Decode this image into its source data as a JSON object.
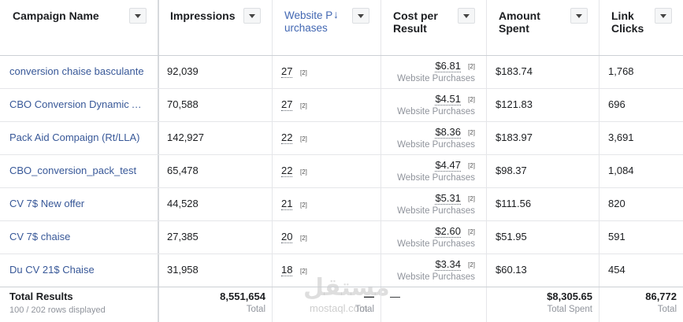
{
  "table": {
    "columns": [
      "Campaign Name",
      "Impressions",
      "Website Purchases",
      "Cost per Result",
      "Amount Spent",
      "Link Clicks"
    ],
    "rows": [
      {
        "name": "conversion chaise basculante",
        "impressions": "92,039",
        "purchases": "27",
        "purchases_note": "[2]",
        "cost": "$6.81",
        "cost_note": "[2]",
        "cost_sub": "Website Purchases",
        "spent": "$183.74",
        "clicks": "1,768"
      },
      {
        "name": "CBO Conversion Dynamic Ads",
        "impressions": "70,588",
        "purchases": "27",
        "purchases_note": "[2]",
        "cost": "$4.51",
        "cost_note": "[2]",
        "cost_sub": "Website Purchases",
        "spent": "$121.83",
        "clicks": "696"
      },
      {
        "name": "Pack Aid Compaign (Rt/LLA)",
        "impressions": "142,927",
        "purchases": "22",
        "purchases_note": "[2]",
        "cost": "$8.36",
        "cost_note": "[2]",
        "cost_sub": "Website Purchases",
        "spent": "$183.97",
        "clicks": "3,691"
      },
      {
        "name": "CBO_conversion_pack_test",
        "impressions": "65,478",
        "purchases": "22",
        "purchases_note": "[2]",
        "cost": "$4.47",
        "cost_note": "[2]",
        "cost_sub": "Website Purchases",
        "spent": "$98.37",
        "clicks": "1,084"
      },
      {
        "name": "CV 7$ New offer",
        "impressions": "44,528",
        "purchases": "21",
        "purchases_note": "[2]",
        "cost": "$5.31",
        "cost_note": "[2]",
        "cost_sub": "Website Purchases",
        "spent": "$111.56",
        "clicks": "820"
      },
      {
        "name": "CV 7$ chaise",
        "impressions": "27,385",
        "purchases": "20",
        "purchases_note": "[2]",
        "cost": "$2.60",
        "cost_note": "[2]",
        "cost_sub": "Website Purchases",
        "spent": "$51.95",
        "clicks": "591"
      },
      {
        "name": "Du CV 21$ Chaise",
        "impressions": "31,958",
        "purchases": "18",
        "purchases_note": "[2]",
        "cost": "$3.34",
        "cost_note": "[2]",
        "cost_sub": "Website Purchases",
        "spent": "$60.13",
        "clicks": "454"
      }
    ],
    "footer": {
      "title": "Total Results",
      "subtitle": "100 / 202 rows displayed",
      "impressions": "8,551,654",
      "impressions_sub": "Total",
      "purchases": "—",
      "purchases_sub": "Total",
      "cost": "—",
      "spent": "$8,305.65",
      "spent_sub": "Total Spent",
      "clicks": "86,772",
      "clicks_sub": "Total"
    }
  },
  "watermark": {
    "logo": "مستقل",
    "site": "mostaql.com"
  }
}
